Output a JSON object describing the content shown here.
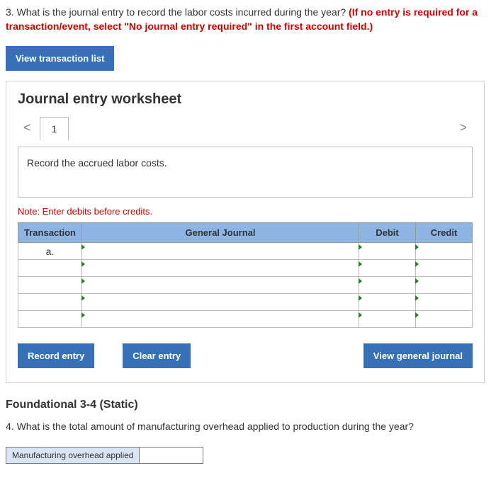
{
  "q3": {
    "number": "3.",
    "text": "What is the journal entry to record the labor costs incurred during the year?",
    "redText": "(If no entry is required for a transaction/event, select \"No journal entry required\" in the first account field.)"
  },
  "buttons": {
    "viewList": "View transaction list",
    "record": "Record entry",
    "clear": "Clear entry",
    "viewJournal": "View general journal"
  },
  "worksheet": {
    "title": "Journal entry worksheet",
    "tab": "1",
    "instruction": "Record the accrued labor costs.",
    "note": "Note: Enter debits before credits.",
    "headers": {
      "transaction": "Transaction",
      "gj": "General Journal",
      "debit": "Debit",
      "credit": "Credit"
    },
    "rowLabel": "a.",
    "chevLeft": "<",
    "chevRight": ">"
  },
  "section": {
    "title": "Foundational 3-4 (Static)"
  },
  "q4": {
    "number": "4.",
    "text": "What is the total amount of manufacturing overhead applied to production during the year?",
    "label": "Manufacturing overhead applied",
    "value": ""
  }
}
